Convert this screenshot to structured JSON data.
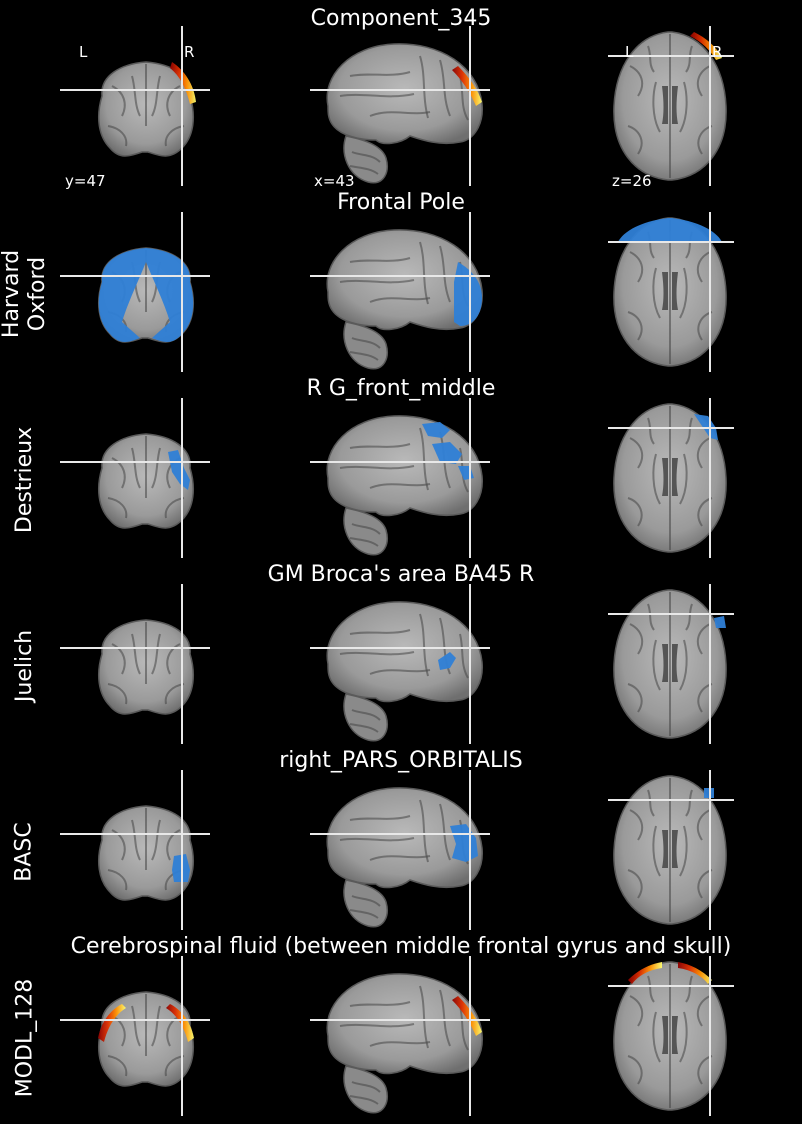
{
  "figure": {
    "background": "#000000",
    "crosshair_color": "#e8e8e8",
    "atlas_overlay_color": "#2f7fd6",
    "component_colormap": [
      "#8b0000",
      "#e03000",
      "#ff9000",
      "#ffff70"
    ],
    "orientation_labels": {
      "left": "L",
      "right": "R"
    },
    "coordinates": {
      "coronal": "y=47",
      "sagittal": "x=43",
      "axial": "z=26"
    }
  },
  "rows": [
    {
      "kind": "component",
      "title": "Component_345",
      "label": "",
      "overlay_type": "heat",
      "views": {
        "coronal": "right-frontal-pole-edge",
        "sagittal": "frontal-pole-edge",
        "axial": "right-frontal-edge"
      }
    },
    {
      "kind": "atlas",
      "title": "Frontal Pole",
      "label": "Harvard\nOxford",
      "overlay_type": "atlas",
      "views": {
        "coronal": "bilateral-frontal-pole",
        "sagittal": "frontal-pole",
        "axial": "frontal-pole-cap"
      }
    },
    {
      "kind": "atlas",
      "title": "R G_front_middle",
      "label": "Destrieux",
      "overlay_type": "atlas",
      "views": {
        "coronal": "right-lateral-patch",
        "sagittal": "upper-frontal-patches",
        "axial": "right-frontal-patch"
      }
    },
    {
      "kind": "atlas",
      "title": "GM Broca's area BA45 R",
      "label": "Juelich",
      "overlay_type": "atlas",
      "views": {
        "coronal": "none",
        "sagittal": "inferior-frontal-blob",
        "axial": "right-lateral-dot"
      }
    },
    {
      "kind": "atlas",
      "title": "right_PARS_ORBITALIS",
      "label": "BASC",
      "overlay_type": "atlas",
      "views": {
        "coronal": "right-lateral-blob",
        "sagittal": "anterior-inferior-blob",
        "axial": "right-frontal-dot"
      }
    },
    {
      "kind": "atlas",
      "title": "Cerebrospinal fluid (between middle frontal gyrus and skull)",
      "label": "MODL_128",
      "overlay_type": "heat",
      "views": {
        "coronal": "bilateral-upper-edges",
        "sagittal": "frontal-pole-edge",
        "axial": "bilateral-frontal-edge"
      }
    }
  ]
}
